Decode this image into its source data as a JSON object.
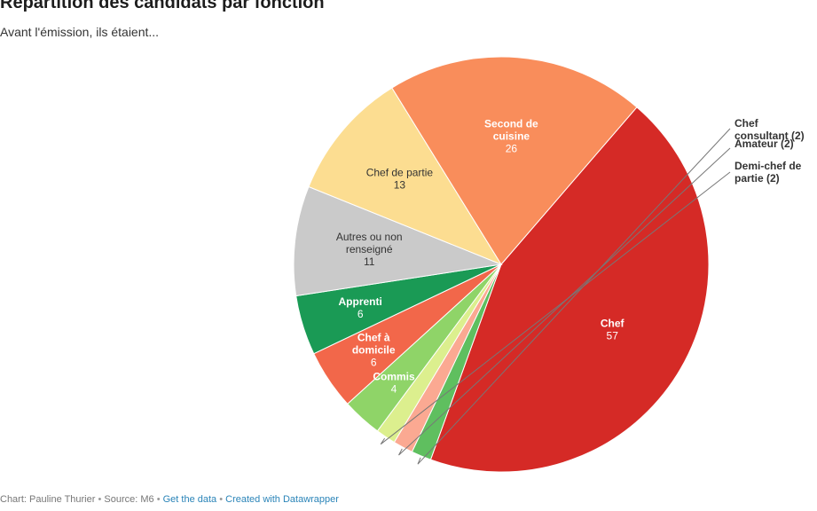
{
  "header": {
    "title": "Répartition des candidats par fonction",
    "subtitle": "Avant l'émission, ils étaient..."
  },
  "chart_data": {
    "type": "pie",
    "title": "Répartition des candidats par fonction",
    "subtitle": "Avant l'émission, ils étaient...",
    "slices": [
      {
        "label": "Chef",
        "value": 57,
        "color": "#d52a26",
        "label_color": "#ffffff"
      },
      {
        "label": "Chef consultant",
        "value": 2,
        "color": "#5fbf5f",
        "label_color": "#333333"
      },
      {
        "label": "Amateur",
        "value": 2,
        "color": "#fba992",
        "label_color": "#333333"
      },
      {
        "label": "Demi-chef de partie",
        "value": 2,
        "color": "#dcef8e",
        "label_color": "#333333"
      },
      {
        "label": "Commis",
        "value": 4,
        "color": "#8fd468",
        "label_color": "#ffffff"
      },
      {
        "label": "Chef à domicile",
        "value": 6,
        "color": "#f2674a",
        "label_color": "#ffffff"
      },
      {
        "label": "Apprenti",
        "value": 6,
        "color": "#1a9a55",
        "label_color": "#ffffff"
      },
      {
        "label": "Autres ou non renseigné",
        "value": 11,
        "color": "#cacaca",
        "label_color": "#333333"
      },
      {
        "label": "Chef de partie",
        "value": 13,
        "color": "#fcdd91",
        "label_color": "#333333"
      },
      {
        "label": "Second de cuisine",
        "value": 26,
        "color": "#f98d5b",
        "label_color": "#ffffff"
      }
    ],
    "small_slice_labels": [
      "Chef consultant (2)",
      "Amateur (2)",
      "Demi-chef de partie (2)"
    ]
  },
  "footer": {
    "credit": "Chart: Pauline Thurier",
    "source": "Source: M6",
    "get_data": "Get the data",
    "created_with": "Created with Datawrapper"
  }
}
